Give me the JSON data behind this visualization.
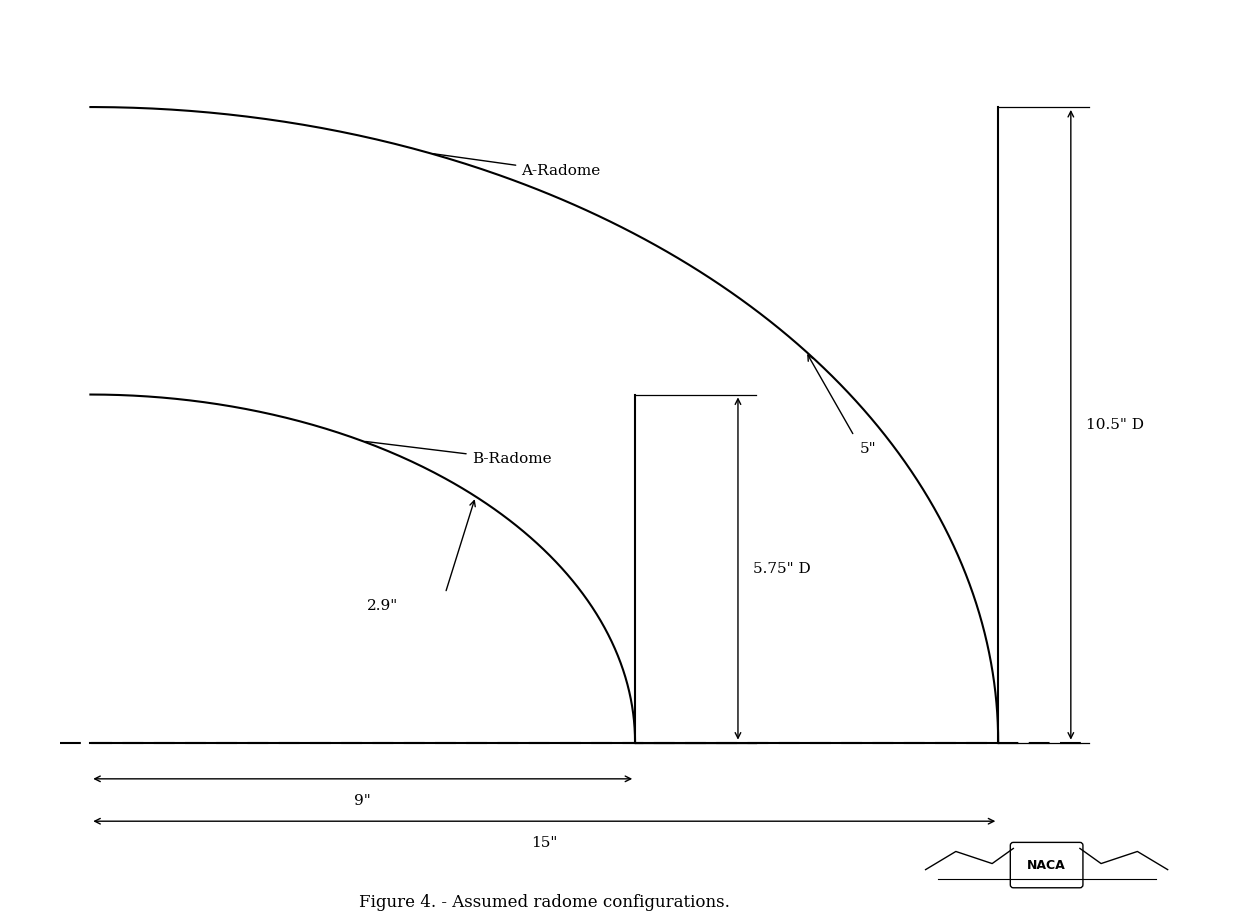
{
  "bg_color": "#ffffff",
  "line_color": "#000000",
  "fig_width": 12.52,
  "fig_height": 9.19,
  "dpi": 100,
  "title": "Figure 4. - Assumed radome configurations.",
  "title_fontsize": 12,
  "label_fontsize": 11,
  "naca_text": "NACA",
  "A_radome_label": "A-Radome",
  "B_radome_label": "B-Radome",
  "dim_9": "9\"",
  "dim_15": "15\"",
  "dim_5pt75": "5.75\" D",
  "dim_10pt5": "10.5\" D",
  "dim_5": "5\"",
  "dim_2pt9": "2.9\"",
  "a_A": 15.0,
  "b_A": 10.5,
  "a_B": 9.0,
  "b_B": 5.75
}
